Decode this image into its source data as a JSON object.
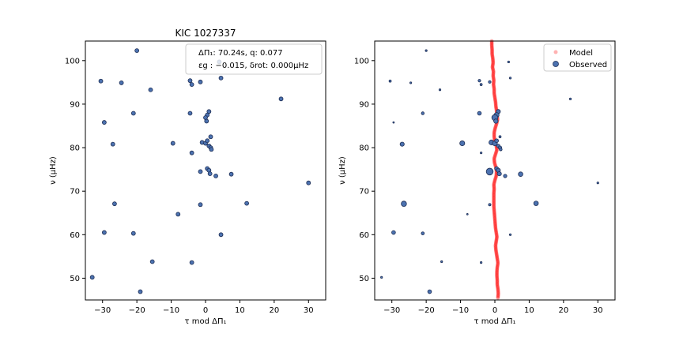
{
  "chart_data": [
    {
      "type": "scatter",
      "title": "KIC 1027337",
      "xlabel": "τ mod ΔΠ₁",
      "ylabel": "ν (μHz)",
      "xlim": [
        -35,
        35
      ],
      "ylim": [
        45,
        104.5
      ],
      "xticks": [
        -30,
        -20,
        -10,
        0,
        10,
        20,
        30
      ],
      "yticks": [
        50,
        60,
        70,
        80,
        90,
        100
      ],
      "grid": false,
      "annotation": {
        "line1": "ΔΠ₁: 70.24s, q:  0.077",
        "line2": "εg : −0.015, δrot: 0.000μHz",
        "placement": "top-right"
      },
      "series": [
        {
          "marker_color": "#4c72b0",
          "points": [
            {
              "x": -20,
              "y": 102.3
            },
            {
              "x": 4,
              "y": 99.7
            },
            {
              "x": -30.5,
              "y": 95.3
            },
            {
              "x": -24.5,
              "y": 94.9
            },
            {
              "x": -4.5,
              "y": 95.4
            },
            {
              "x": -4,
              "y": 94.5
            },
            {
              "x": -1.5,
              "y": 95.1
            },
            {
              "x": 4.5,
              "y": 96.0
            },
            {
              "x": -16,
              "y": 93.3
            },
            {
              "x": 22,
              "y": 91.2
            },
            {
              "x": -21,
              "y": 87.9
            },
            {
              "x": -4.5,
              "y": 87.9
            },
            {
              "x": 1,
              "y": 88.3
            },
            {
              "x": 0.5,
              "y": 87.5
            },
            {
              "x": 0,
              "y": 86.9
            },
            {
              "x": 0.3,
              "y": 86.1
            },
            {
              "x": -29.5,
              "y": 85.8
            },
            {
              "x": 1.5,
              "y": 82.5
            },
            {
              "x": -1,
              "y": 81.2
            },
            {
              "x": 0,
              "y": 81.0
            },
            {
              "x": 0.5,
              "y": 81.6
            },
            {
              "x": 1,
              "y": 80.4
            },
            {
              "x": 1.5,
              "y": 80.0
            },
            {
              "x": 1.7,
              "y": 79.6
            },
            {
              "x": -27,
              "y": 80.8
            },
            {
              "x": -9.5,
              "y": 81.0
            },
            {
              "x": -4,
              "y": 78.8
            },
            {
              "x": -1.5,
              "y": 74.5
            },
            {
              "x": 0.5,
              "y": 75.2
            },
            {
              "x": 1,
              "y": 74.8
            },
            {
              "x": 1.3,
              "y": 74.0
            },
            {
              "x": 3,
              "y": 73.5
            },
            {
              "x": 7.5,
              "y": 73.9
            },
            {
              "x": 30,
              "y": 71.9
            },
            {
              "x": -26.5,
              "y": 67.1
            },
            {
              "x": -1.5,
              "y": 66.9
            },
            {
              "x": 12,
              "y": 67.2
            },
            {
              "x": -8,
              "y": 64.7
            },
            {
              "x": -29.5,
              "y": 60.5
            },
            {
              "x": -21,
              "y": 60.3
            },
            {
              "x": 4.5,
              "y": 60.0
            },
            {
              "x": -15.5,
              "y": 53.8
            },
            {
              "x": -4,
              "y": 53.6
            },
            {
              "x": -33,
              "y": 50.2
            },
            {
              "x": -19,
              "y": 46.9
            }
          ]
        }
      ]
    },
    {
      "type": "scatter",
      "xlabel": "τ mod ΔΠ₁",
      "ylabel": "ν (μHz)",
      "xlim": [
        -35,
        35
      ],
      "ylim": [
        45,
        104.5
      ],
      "xticks": [
        -30,
        -20,
        -10,
        0,
        10,
        20,
        30
      ],
      "yticks": [
        50,
        60,
        70,
        80,
        90,
        100
      ],
      "grid": false,
      "legend": {
        "placement": "top-right",
        "entries": [
          "Model",
          "Observed"
        ]
      },
      "series": [
        {
          "name": "Model",
          "marker_color": "#ff0000",
          "points": [
            {
              "x": -0.9,
              "y": 104.5
            },
            {
              "x": -0.9,
              "y": 103.5
            },
            {
              "x": -0.8,
              "y": 102.5
            },
            {
              "x": -0.8,
              "y": 101.5
            },
            {
              "x": -0.6,
              "y": 100.5
            },
            {
              "x": -0.5,
              "y": 99.5
            },
            {
              "x": -0.7,
              "y": 98.5
            },
            {
              "x": -0.4,
              "y": 97.5
            },
            {
              "x": -0.5,
              "y": 96.5
            },
            {
              "x": -0.3,
              "y": 95.5
            },
            {
              "x": -0.4,
              "y": 94.5
            },
            {
              "x": -0.2,
              "y": 93.5
            },
            {
              "x": -0.2,
              "y": 92.5
            },
            {
              "x": 0.0,
              "y": 91.5
            },
            {
              "x": 0.2,
              "y": 90.5
            },
            {
              "x": 0.3,
              "y": 89.5
            },
            {
              "x": 0.5,
              "y": 88.5
            },
            {
              "x": 0.6,
              "y": 87.5
            },
            {
              "x": 0.8,
              "y": 86.5
            },
            {
              "x": 0.5,
              "y": 85.5
            },
            {
              "x": 0.1,
              "y": 84.5
            },
            {
              "x": -0.2,
              "y": 83.5
            },
            {
              "x": -0.2,
              "y": 82.5
            },
            {
              "x": 0.0,
              "y": 81.5
            },
            {
              "x": 0.4,
              "y": 80.5
            },
            {
              "x": 0.6,
              "y": 79.5
            },
            {
              "x": 0.2,
              "y": 78.5
            },
            {
              "x": -0.2,
              "y": 77.5
            },
            {
              "x": -0.1,
              "y": 76.5
            },
            {
              "x": 0.3,
              "y": 75.5
            },
            {
              "x": 0.5,
              "y": 74.5
            },
            {
              "x": 0.4,
              "y": 73.5
            },
            {
              "x": 0.0,
              "y": 72.5
            },
            {
              "x": -0.3,
              "y": 71.5
            },
            {
              "x": -0.2,
              "y": 70.5
            },
            {
              "x": -0.3,
              "y": 69.5
            },
            {
              "x": -0.3,
              "y": 68.5
            },
            {
              "x": -0.3,
              "y": 67.5
            },
            {
              "x": -0.3,
              "y": 66.5
            },
            {
              "x": -0.2,
              "y": 65.5
            },
            {
              "x": -0.1,
              "y": 64.5
            },
            {
              "x": 0.0,
              "y": 63.5
            },
            {
              "x": 0.1,
              "y": 62.5
            },
            {
              "x": 0.2,
              "y": 61.5
            },
            {
              "x": 0.4,
              "y": 60.5
            },
            {
              "x": 0.6,
              "y": 59.5
            },
            {
              "x": 0.4,
              "y": 58.5
            },
            {
              "x": 0.2,
              "y": 57.5
            },
            {
              "x": 0.3,
              "y": 56.5
            },
            {
              "x": 0.5,
              "y": 55.5
            },
            {
              "x": 0.7,
              "y": 54.5
            },
            {
              "x": 0.9,
              "y": 53.5
            },
            {
              "x": 0.7,
              "y": 52.5
            },
            {
              "x": 0.6,
              "y": 51.5
            },
            {
              "x": 0.6,
              "y": 50.5
            },
            {
              "x": 0.7,
              "y": 49.5
            },
            {
              "x": 0.7,
              "y": 48.5
            },
            {
              "x": 0.9,
              "y": 47.5
            },
            {
              "x": 1.0,
              "y": 46.5
            },
            {
              "x": 0.9,
              "y": 45.5
            }
          ]
        },
        {
          "name": "Observed",
          "marker_color": "#4c72b0",
          "points": [
            {
              "x": -20,
              "y": 102.3,
              "size": 1
            },
            {
              "x": 4,
              "y": 99.7,
              "size": 1
            },
            {
              "x": -30.5,
              "y": 95.3,
              "size": 1.2
            },
            {
              "x": -24.5,
              "y": 94.9,
              "size": 1
            },
            {
              "x": -4.5,
              "y": 95.4,
              "size": 1.4
            },
            {
              "x": -4,
              "y": 94.5,
              "size": 1.2
            },
            {
              "x": -1.5,
              "y": 95.1,
              "size": 1.4
            },
            {
              "x": 4.5,
              "y": 96.0,
              "size": 1
            },
            {
              "x": -16,
              "y": 93.3,
              "size": 1
            },
            {
              "x": 22,
              "y": 91.2,
              "size": 1
            },
            {
              "x": -21,
              "y": 87.9,
              "size": 1.5
            },
            {
              "x": -4.5,
              "y": 87.9,
              "size": 2
            },
            {
              "x": 1,
              "y": 88.3,
              "size": 2.2
            },
            {
              "x": 0.5,
              "y": 87.5,
              "size": 2.6
            },
            {
              "x": 0,
              "y": 86.9,
              "size": 3.2
            },
            {
              "x": 0.3,
              "y": 86.1,
              "size": 2.3
            },
            {
              "x": -29.5,
              "y": 85.8,
              "size": 0.8
            },
            {
              "x": 1.5,
              "y": 82.5,
              "size": 1.2
            },
            {
              "x": -1,
              "y": 81.2,
              "size": 2.6
            },
            {
              "x": 0,
              "y": 81.0,
              "size": 2.6
            },
            {
              "x": 0.5,
              "y": 81.6,
              "size": 2.0
            },
            {
              "x": 1,
              "y": 80.4,
              "size": 1.8
            },
            {
              "x": 1.5,
              "y": 80.0,
              "size": 1.8
            },
            {
              "x": 1.7,
              "y": 79.6,
              "size": 1.5
            },
            {
              "x": -27,
              "y": 80.8,
              "size": 2.2
            },
            {
              "x": -9.5,
              "y": 81.0,
              "size": 2.6
            },
            {
              "x": -4,
              "y": 78.8,
              "size": 1
            },
            {
              "x": -1.5,
              "y": 74.5,
              "size": 3.6
            },
            {
              "x": 0.5,
              "y": 75.2,
              "size": 2.0
            },
            {
              "x": 1,
              "y": 74.8,
              "size": 2.2
            },
            {
              "x": 1.3,
              "y": 74.0,
              "size": 2.2
            },
            {
              "x": 3,
              "y": 73.5,
              "size": 1.8
            },
            {
              "x": 7.5,
              "y": 73.9,
              "size": 2.4
            },
            {
              "x": 30,
              "y": 71.9,
              "size": 1
            },
            {
              "x": -26.5,
              "y": 67.1,
              "size": 2.8
            },
            {
              "x": -1.5,
              "y": 66.9,
              "size": 1.3
            },
            {
              "x": 12,
              "y": 67.2,
              "size": 2.4
            },
            {
              "x": -8,
              "y": 64.7,
              "size": 0.8
            },
            {
              "x": -29.5,
              "y": 60.5,
              "size": 2.0
            },
            {
              "x": -21,
              "y": 60.3,
              "size": 1.6
            },
            {
              "x": 4.5,
              "y": 60.0,
              "size": 1
            },
            {
              "x": -15.5,
              "y": 53.8,
              "size": 1
            },
            {
              "x": -4,
              "y": 53.6,
              "size": 1
            },
            {
              "x": -33,
              "y": 50.2,
              "size": 1
            },
            {
              "x": -19,
              "y": 46.9,
              "size": 2.0
            }
          ]
        }
      ]
    }
  ]
}
